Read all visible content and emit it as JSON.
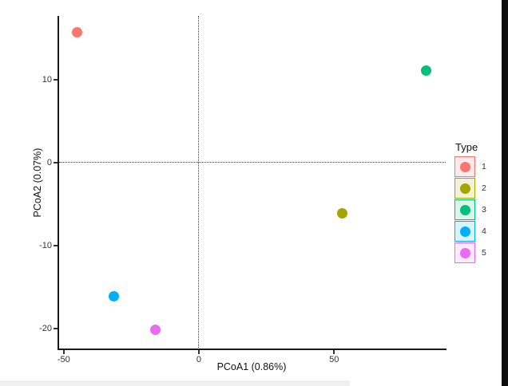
{
  "figure": {
    "background": "#ffffff",
    "right_edge_bar_color": "#0c0c0c",
    "bottom_band_color": "#f0f0f0"
  },
  "chart_data": {
    "type": "scatter",
    "title": "",
    "xlabel": "PCoA1 (0.86%)",
    "ylabel": "PCoA2 (0.07%)",
    "xlim": [
      -52,
      91.3
    ],
    "ylim": [
      -22.5,
      17.7
    ],
    "xticks": [
      -50,
      0,
      50
    ],
    "yticks": [
      -20,
      -10,
      0,
      10
    ],
    "grid": false,
    "reference_lines": [
      {
        "axis": "x",
        "value": 0,
        "style": "dotted"
      },
      {
        "axis": "y",
        "value": 0,
        "style": "dotted"
      }
    ],
    "legend": {
      "title": "Type",
      "position": "right"
    },
    "series": [
      {
        "name": "1",
        "color": "#F8766D",
        "points": [
          [
            -45.0,
            15.7
          ]
        ]
      },
      {
        "name": "2",
        "color": "#A3A500",
        "points": [
          [
            53.0,
            -6.1
          ]
        ]
      },
      {
        "name": "3",
        "color": "#00BF7D",
        "points": [
          [
            84.0,
            11.1
          ]
        ]
      },
      {
        "name": "4",
        "color": "#00B0F6",
        "points": [
          [
            -31.5,
            -16.1
          ]
        ]
      },
      {
        "name": "5",
        "color": "#E76BF3",
        "points": [
          [
            -16.0,
            -20.1
          ]
        ]
      }
    ]
  }
}
